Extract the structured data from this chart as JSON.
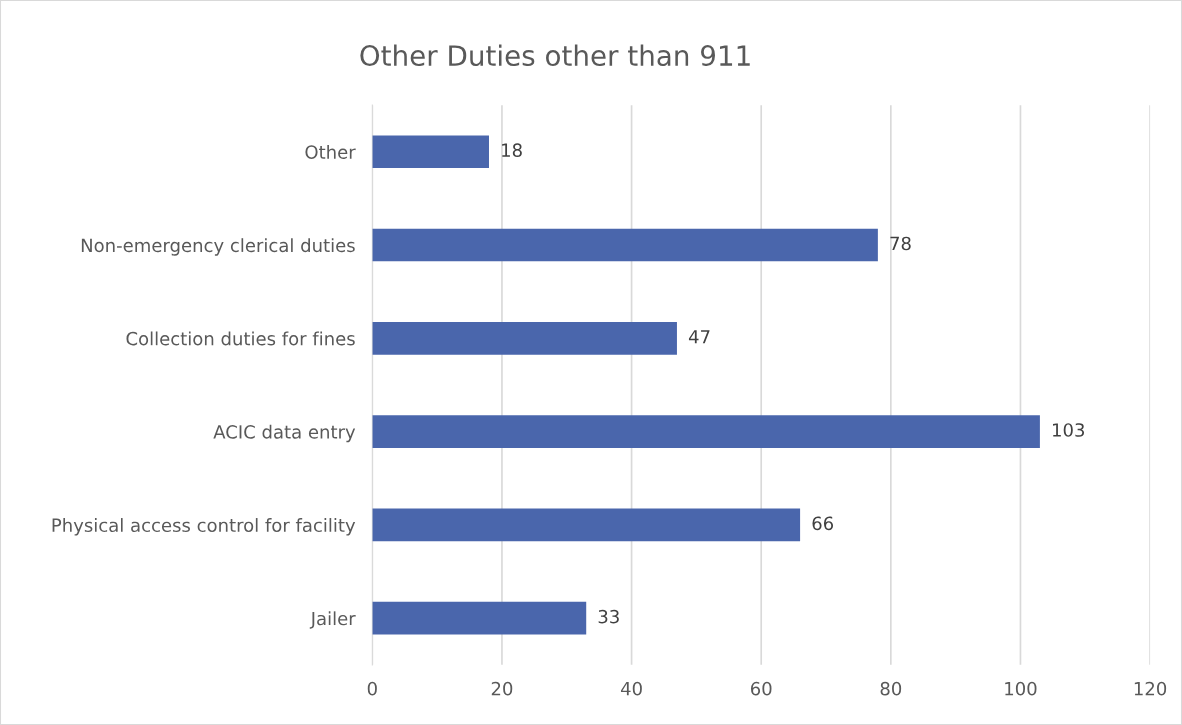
{
  "chart_data": {
    "type": "bar",
    "orientation": "horizontal",
    "title": "Other Duties other than 911",
    "categories": [
      "Other",
      "Non-emergency clerical duties",
      "Collection duties for fines",
      "ACIC data entry",
      "Physical access control for facility",
      "Jailer"
    ],
    "values": [
      18,
      78,
      47,
      103,
      66,
      33
    ],
    "color": "#4a66ac",
    "xlim": [
      0,
      120
    ],
    "xticks": [
      0,
      20,
      40,
      60,
      80,
      100,
      120
    ],
    "grid": "x",
    "data_labels": true,
    "legend": false
  }
}
